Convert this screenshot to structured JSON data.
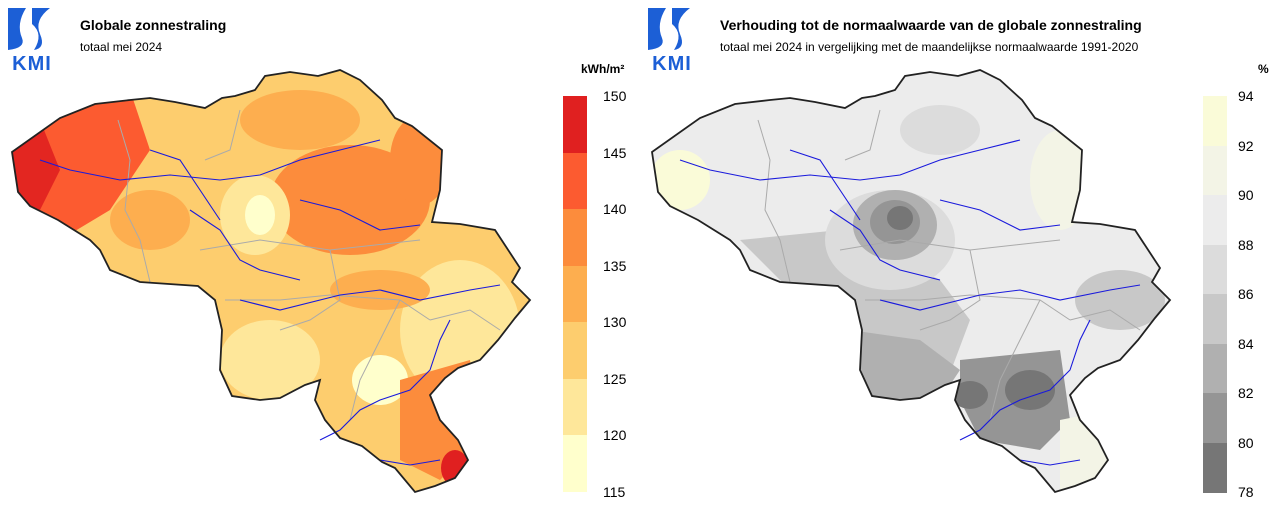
{
  "left": {
    "logo": "KMI",
    "title": "Globale zonnestraling",
    "subtitle": "totaal mei 2024",
    "unit": "kWh/m²",
    "legend": {
      "ticks": [
        "150",
        "145",
        "140",
        "135",
        "130",
        "125",
        "120",
        "115"
      ],
      "colors": [
        "#e02020",
        "#fc5b30",
        "#fc8c3c",
        "#fdae4f",
        "#fdcd6e",
        "#fee79a",
        "#ffffcc"
      ]
    }
  },
  "right": {
    "logo": "KMI",
    "title": "Verhouding tot de normaalwaarde van de globale zonnestraling",
    "subtitle": "totaal mei 2024 in vergelijking met de maandelijkse normaalwaarde 1991-2020",
    "unit": "%",
    "legend": {
      "ticks": [
        "94",
        "92",
        "90",
        "88",
        "86",
        "84",
        "82",
        "80",
        "78"
      ],
      "colors": [
        "#fafbd8",
        "#f3f4e6",
        "#ececec",
        "#dcdcdc",
        "#c8c8c8",
        "#b0b0b0",
        "#959595",
        "#767676"
      ]
    }
  },
  "colors": {
    "kmi_blue": "#1c5fd6",
    "rivers": "#1a1adc",
    "border": "#222222",
    "provinces": "#aaaaaa"
  }
}
